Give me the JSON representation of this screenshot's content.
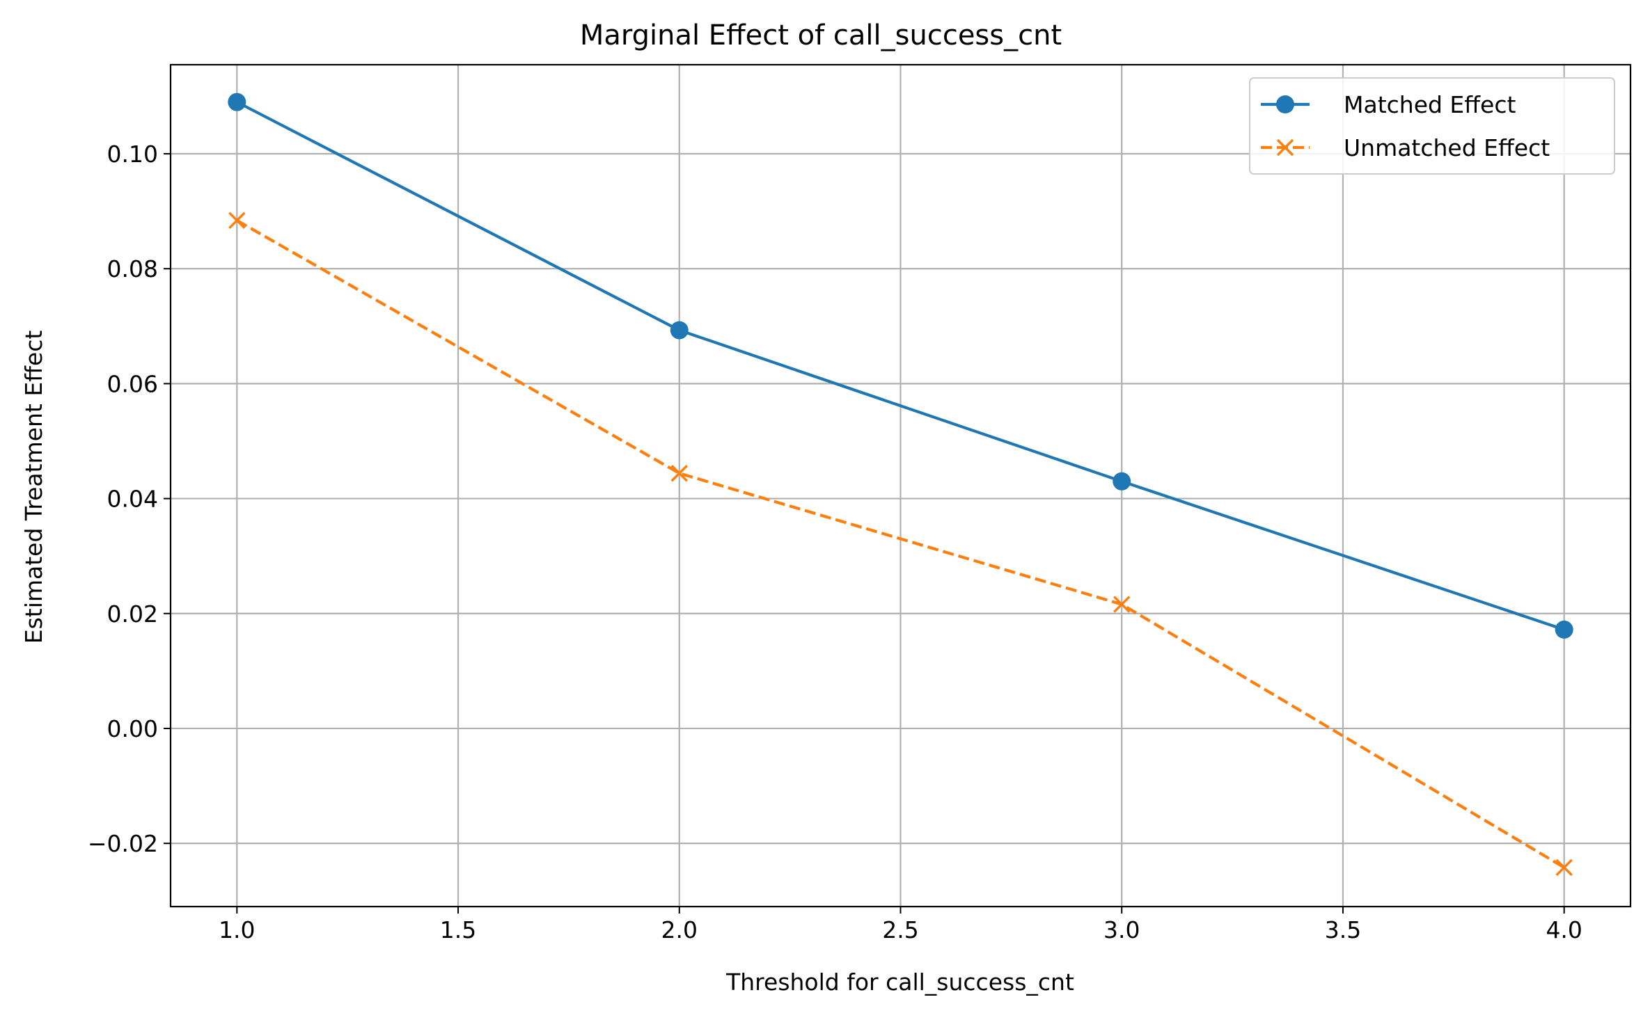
{
  "chart_data": {
    "type": "line",
    "title": "Marginal Effect of call_success_cnt",
    "xlabel": "Threshold for call_success_cnt",
    "ylabel": "Estimated Treatment Effect",
    "x": [
      1.0,
      2.0,
      3.0,
      4.0
    ],
    "xlim": [
      0.85,
      4.15
    ],
    "ylim": [
      -0.031,
      0.1155
    ],
    "xticks": [
      "1.0",
      "1.5",
      "2.0",
      "2.5",
      "3.0",
      "3.5",
      "4.0"
    ],
    "yticks": [
      "−0.02",
      "0.00",
      "0.02",
      "0.04",
      "0.06",
      "0.08",
      "0.10"
    ],
    "grid": true,
    "legend_position": "top-right",
    "series": [
      {
        "name": "Matched Effect",
        "values": [
          0.109,
          0.0693,
          0.043,
          0.0172
        ],
        "color": "#1f77b4",
        "line_style": "solid",
        "marker": "circle"
      },
      {
        "name": "Unmatched Effect",
        "values": [
          0.0884,
          0.0444,
          0.0216,
          -0.0242
        ],
        "color": "#ff7f0e",
        "line_style": "dashed",
        "marker": "x"
      }
    ]
  }
}
